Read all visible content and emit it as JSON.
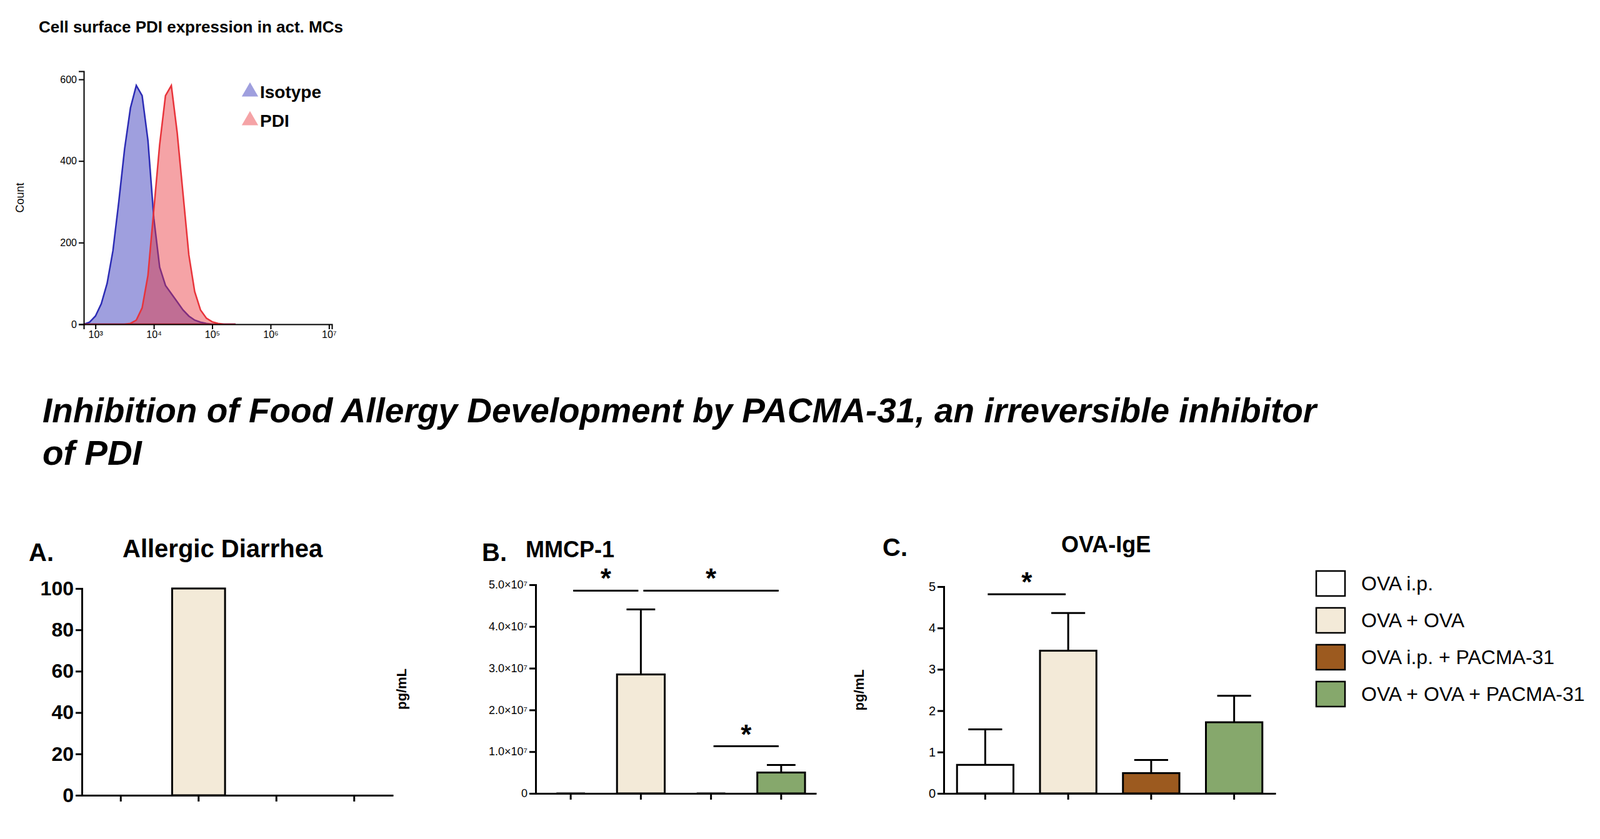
{
  "figure_title": "Inhibition of Food Allergy Development by PACMA-31, an irreversible inhibitor of PDI",
  "chart_data": [
    {
      "type": "area",
      "title": "Cell surface PDI expression in act. MCs",
      "y_label": "Count",
      "x": [
        631,
        794,
        1000,
        1259,
        1585,
        1995,
        2512,
        3162,
        3981,
        5012,
        6310,
        7943,
        10000,
        12589,
        15849,
        19953,
        25119,
        31623,
        39811,
        50119,
        63096,
        79433,
        100000,
        125893,
        158489,
        199526,
        251189
      ],
      "log": "x",
      "xlim": [
        631,
        11220000
      ],
      "xticks": [
        {
          "value": 1000,
          "label": "10³"
        },
        {
          "value": 10000,
          "label": "10⁴"
        },
        {
          "value": 100000,
          "label": "10⁵"
        },
        {
          "value": 1000000,
          "label": "10⁶"
        },
        {
          "value": 10000000,
          "label": "10⁷"
        }
      ],
      "ylim": [
        0,
        620
      ],
      "yticks": [
        0,
        200,
        400,
        600
      ],
      "legend": "top-right",
      "series": [
        {
          "name": "Isotype",
          "color": "#2b2bb5",
          "marker": "triangle",
          "values": [
            0,
            5,
            20,
            50,
            100,
            180,
            300,
            430,
            530,
            585,
            560,
            450,
            260,
            140,
            95,
            75,
            55,
            35,
            20,
            10,
            5,
            2,
            0,
            0,
            0,
            0,
            0
          ]
        },
        {
          "name": "PDI",
          "color": "#e8333a",
          "marker": "triangle",
          "values": [
            0,
            0,
            0,
            0,
            0,
            0,
            0,
            0,
            2,
            10,
            40,
            120,
            280,
            440,
            560,
            585,
            470,
            320,
            170,
            80,
            35,
            15,
            6,
            2,
            0,
            0,
            0
          ]
        }
      ]
    },
    {
      "type": "bar",
      "panel_label": "A.",
      "title": "Allergic Diarrhea",
      "categories": [
        "OVA i.p.",
        "OVA + OVA",
        "OVA i.p. + PACMA-31",
        "OVA + OVA + PACMA-31"
      ],
      "values": [
        0,
        100,
        0,
        0
      ],
      "colors": [
        "#ffffff",
        "#f3ead8",
        "#9c5a1f",
        "#86a86c"
      ],
      "ylim": [
        0,
        100
      ],
      "yticks": [
        0,
        20,
        40,
        60,
        80,
        100
      ],
      "tick_labels": "y"
    },
    {
      "type": "bar",
      "panel_label": "B.",
      "title": "MMCP-1",
      "y_label": "pg/mL",
      "categories": [
        "OVA i.p.",
        "OVA + OVA",
        "OVA i.p. + PACMA-31",
        "OVA + OVA + PACMA-31"
      ],
      "values": [
        0,
        28500000,
        0,
        5000000
      ],
      "errors": [
        0,
        15600000,
        0,
        1800000
      ],
      "colors": [
        "#ffffff",
        "#f3ead8",
        "#9c5a1f",
        "#86a86c"
      ],
      "ylim": [
        0,
        50000000
      ],
      "yticks": [
        0,
        {
          "value": 10000000,
          "label": "1.0×10⁷"
        },
        {
          "value": 20000000,
          "label": "2.0×10⁷"
        },
        {
          "value": 30000000,
          "label": "3.0×10⁷"
        },
        {
          "value": 40000000,
          "label": "4.0×10⁷"
        },
        {
          "value": 50000000,
          "label": "5.0×10⁷"
        }
      ],
      "tick_labels": "y",
      "significance": [
        {
          "label": "*",
          "pair": [
            0,
            1
          ]
        },
        {
          "label": "*",
          "pair": [
            1,
            3
          ]
        },
        {
          "label": "*",
          "pair": [
            2,
            3
          ]
        }
      ]
    },
    {
      "type": "bar",
      "panel_label": "C.",
      "title": "OVA-IgE",
      "y_label": "pg/mL",
      "categories": [
        "OVA i.p.",
        "OVA + OVA",
        "OVA i.p. + PACMA-31",
        "OVA + OVA + PACMA-31"
      ],
      "values": [
        0.69,
        3.45,
        0.49,
        1.72
      ],
      "errors": [
        0.86,
        0.91,
        0.32,
        0.64
      ],
      "colors": [
        "#ffffff",
        "#f3ead8",
        "#9c5a1f",
        "#86a86c"
      ],
      "ylim": [
        0,
        5
      ],
      "yticks": [
        0,
        1,
        2,
        3,
        4,
        5
      ],
      "tick_labels": "y",
      "legend": "right",
      "significance": [
        {
          "label": "*",
          "pair": [
            0,
            1
          ]
        }
      ]
    }
  ]
}
